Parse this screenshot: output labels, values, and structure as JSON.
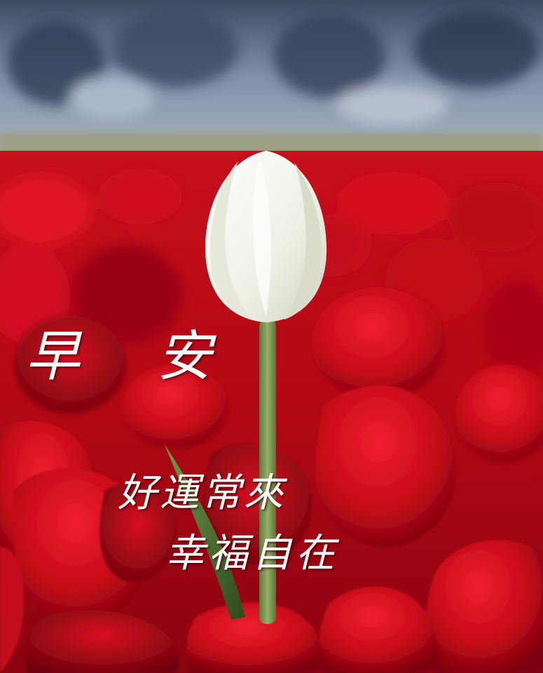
{
  "greeting": {
    "title": "早安",
    "line1": "好運常來",
    "line2": "幸福自在"
  },
  "colors": {
    "sky_top": "#4a5a74",
    "sky_mid": "#8a9ab4",
    "field_red": "#d0101c",
    "deep_red": "#8e0410",
    "tulip_white": "#f4f6ec",
    "stem_green": "#7d9a55",
    "text": "#ffffff"
  },
  "image": {
    "subject": "white-tulip-in-red-tulip-field"
  }
}
